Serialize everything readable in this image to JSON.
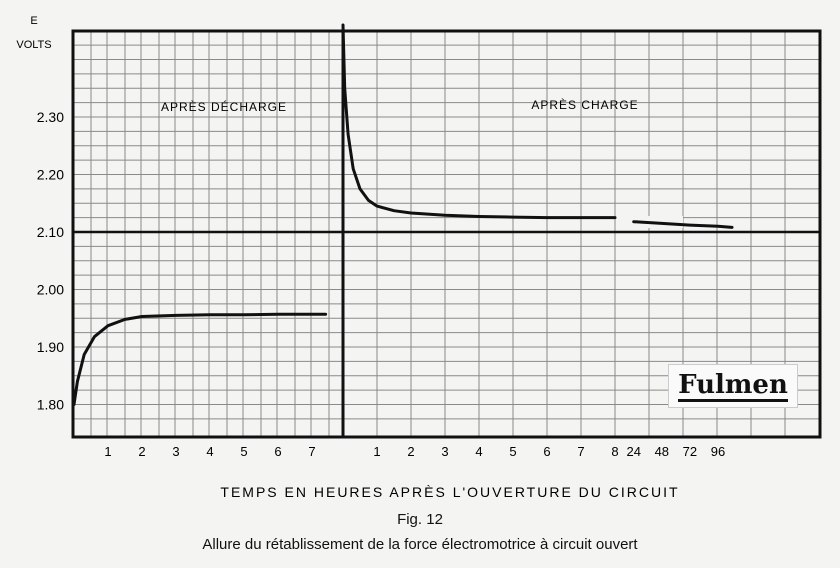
{
  "chart_data": {
    "type": "line",
    "y_unit_top": "E",
    "y_unit_bottom": "VOLTS",
    "ylabel": "E VOLTS",
    "xlabel": "TEMPS EN HEURES APRÈS L'OUVERTURE DU CIRCUIT",
    "ylim": [
      1.76,
      2.47
    ],
    "yticks": [
      "2.30",
      "2.20",
      "2.10",
      "2.00",
      "1.90",
      "1.80"
    ],
    "grid": true,
    "reference_line": 2.1,
    "panels": [
      {
        "label": "APRÈS DÉCHARGE",
        "x_ticks": [
          "1",
          "2",
          "3",
          "4",
          "5",
          "6",
          "7"
        ],
        "series": [
          {
            "x": [
              0,
              0.1,
              0.3,
              0.6,
              1.0,
              1.5,
              2,
              3,
              4,
              5,
              6,
              7,
              7.4
            ],
            "y": [
              1.8,
              1.84,
              1.887,
              1.918,
              1.937,
              1.948,
              1.953,
              1.955,
              1.956,
              1.956,
              1.957,
              1.957,
              1.957
            ]
          }
        ]
      },
      {
        "label": "APRÈS CHARGE",
        "x_ticks": [
          "1",
          "2",
          "3",
          "4",
          "5",
          "6",
          "7",
          "8",
          "24",
          "48",
          "72",
          "96"
        ],
        "series": [
          {
            "x": [
              0,
              0.05,
              0.15,
              0.3,
              0.5,
              0.75,
              1.0,
              1.5,
              2,
              3,
              4,
              5,
              6,
              7,
              8
            ],
            "y": [
              2.46,
              2.35,
              2.27,
              2.21,
              2.175,
              2.155,
              2.145,
              2.137,
              2.133,
              2.129,
              2.127,
              2.126,
              2.125,
              2.125,
              2.125
            ]
          },
          {
            "x": [
              24,
              48,
              72,
              96,
              108
            ],
            "y": [
              2.118,
              2.115,
              2.112,
              2.11,
              2.108
            ]
          }
        ]
      }
    ],
    "colors": {
      "line": "#111111",
      "grid": "#8a8a8a",
      "background": "#f4f4f2"
    }
  },
  "figure": {
    "number": "Fig. 12",
    "caption": "Allure du rétablissement de la force électromotrice à circuit ouvert"
  },
  "brand": {
    "logo_text": "Fulmen"
  }
}
